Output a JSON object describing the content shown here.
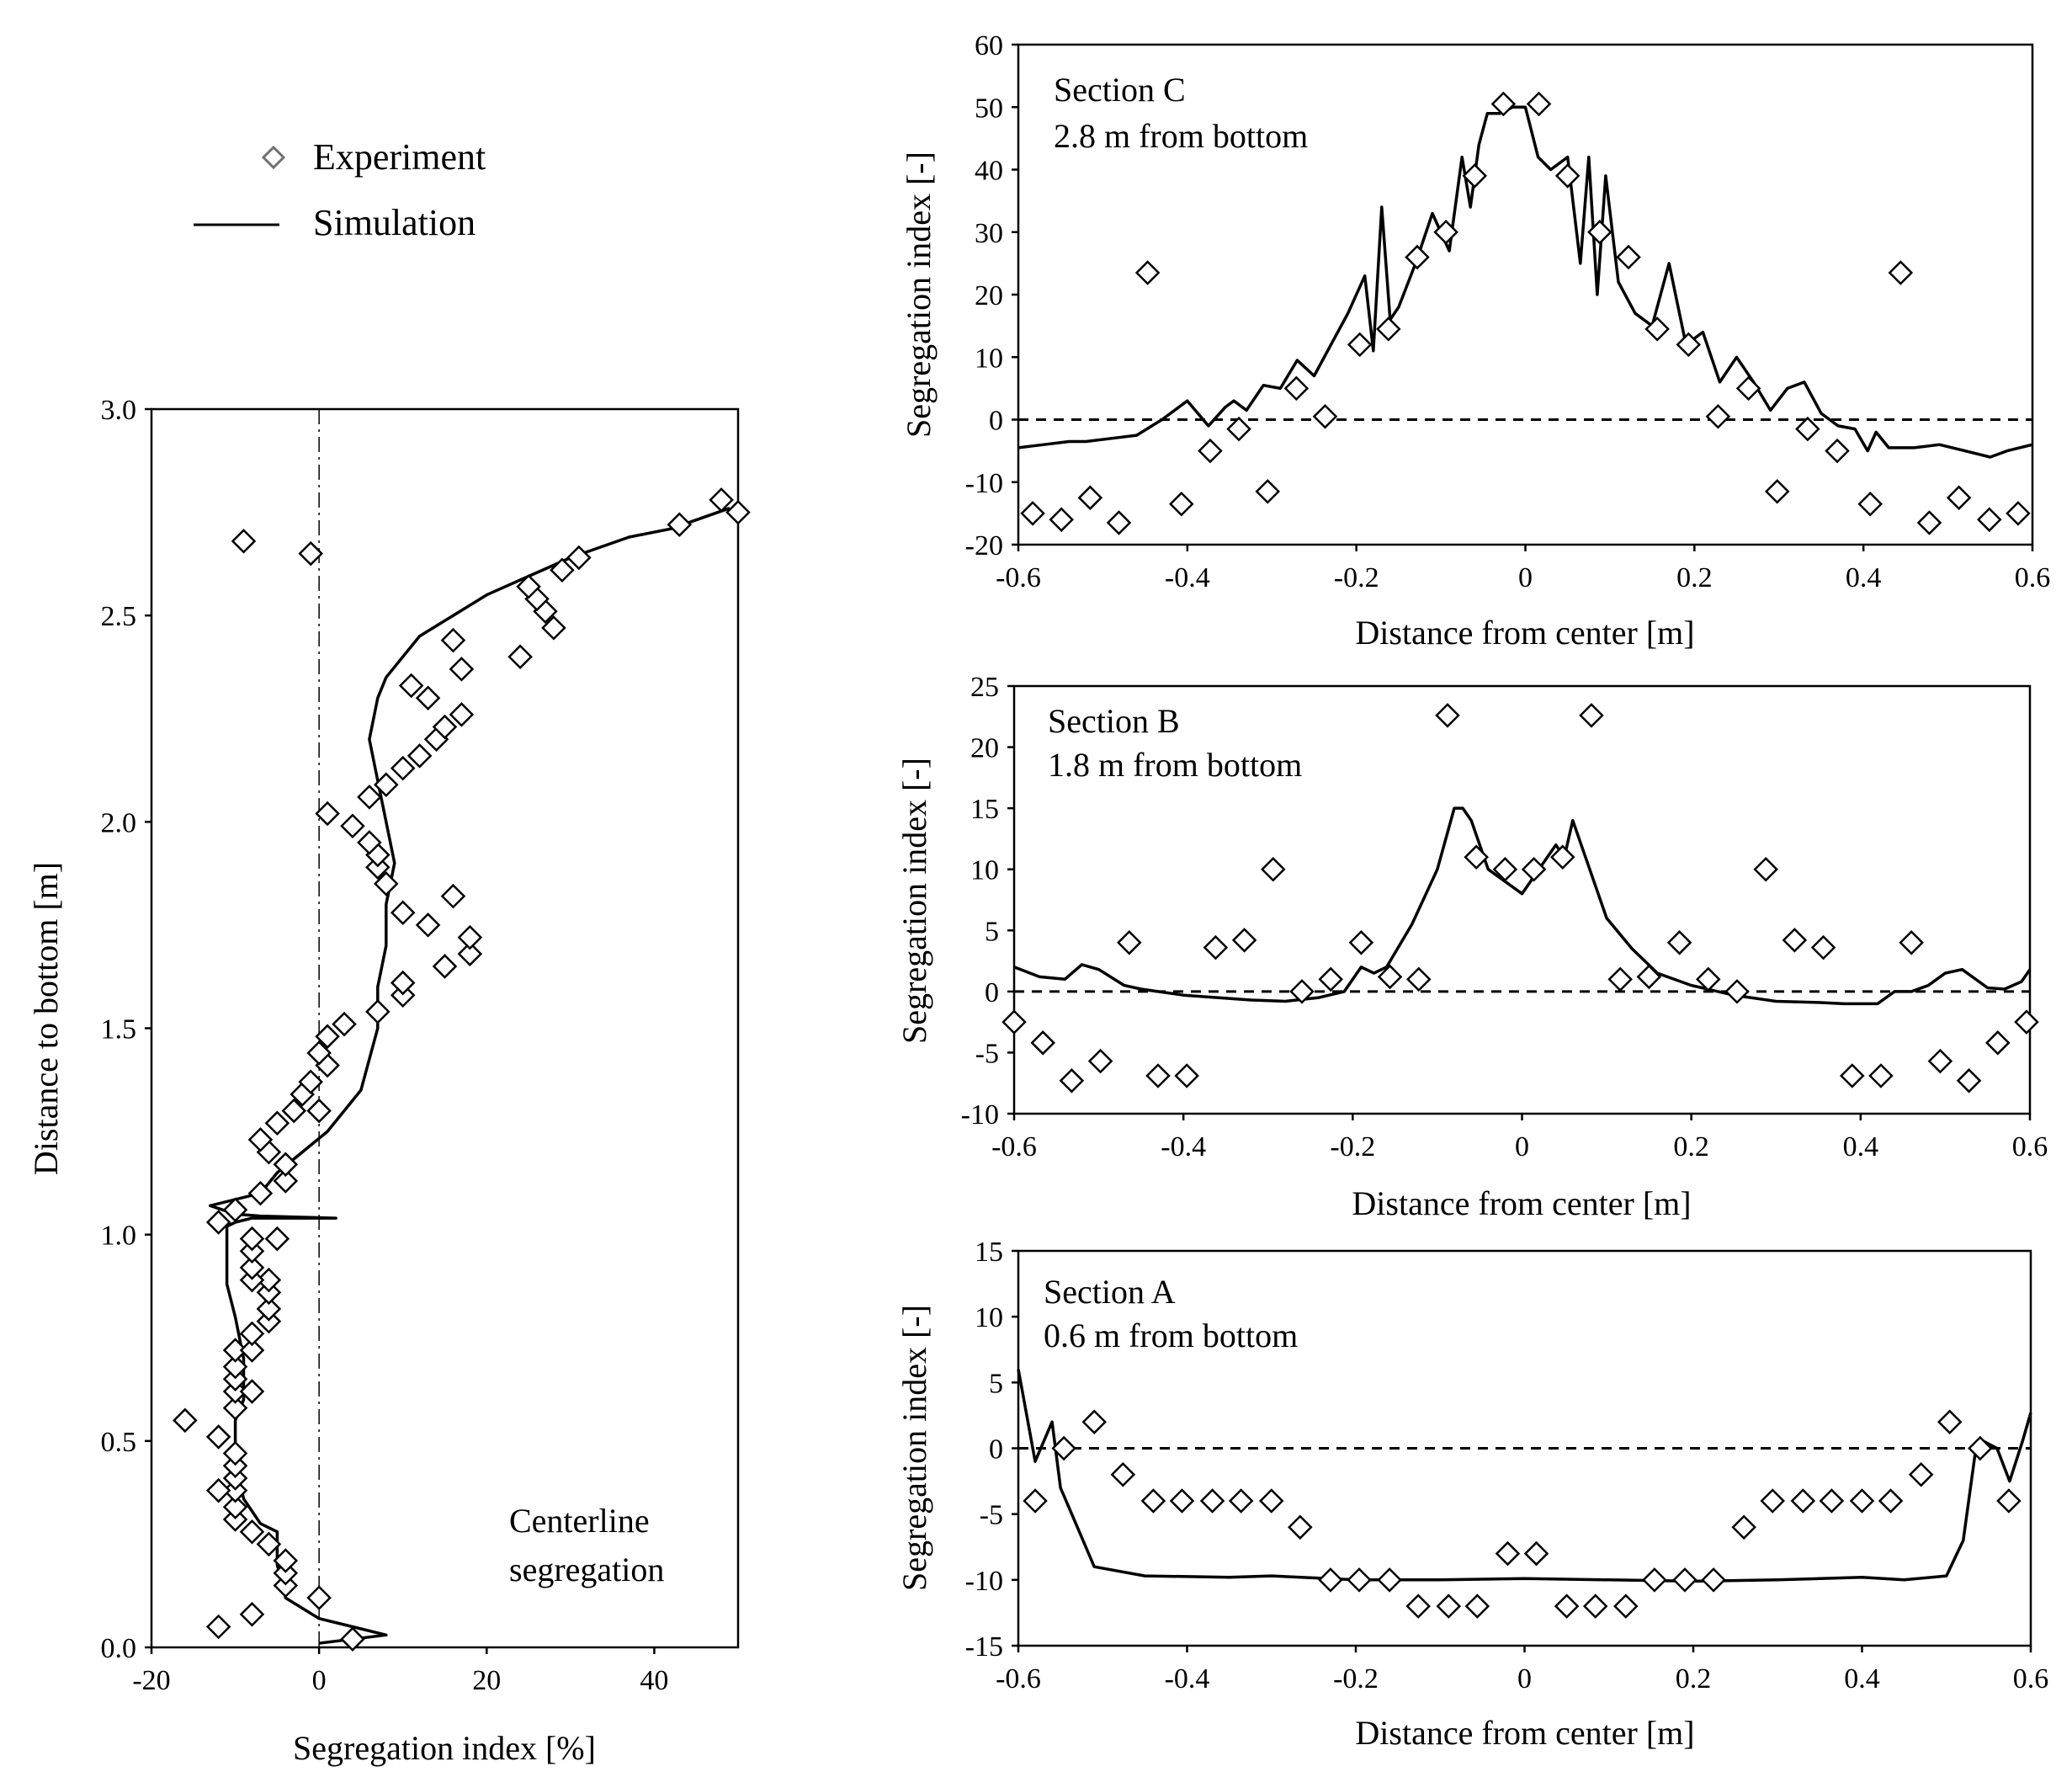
{
  "legend": {
    "experiment_label": "Experiment",
    "simulation_label": "Simulation"
  },
  "chart_data": [
    {
      "id": "centerline",
      "type": "scatter",
      "xlabel": "Segregation index [%]",
      "ylabel": "Distance to bottom [m]",
      "annotation": [
        "Centerline",
        "segregation"
      ],
      "xlim": [
        -20,
        50
      ],
      "ylim": [
        0,
        3
      ],
      "xticks": [
        -20,
        0,
        20,
        40
      ],
      "yticks": [
        0.0,
        0.5,
        1.0,
        1.5,
        2.0,
        2.5,
        3.0
      ],
      "ytick_labels": [
        "0.0",
        "0.5",
        "1.0",
        "1.5",
        "2.0",
        "2.5",
        "3.0"
      ],
      "reference_line": {
        "axis": "x",
        "value": 0,
        "style": "dash-dot"
      },
      "series": [
        {
          "name": "Experiment",
          "kind": "scatter",
          "x": [
            4,
            -12,
            -8,
            0,
            -4,
            -4,
            -4,
            -6,
            -8,
            -10,
            -10,
            -10,
            -12,
            -10,
            -10,
            -10,
            -12,
            -16,
            -10,
            -10,
            -10,
            -10,
            -8,
            -10,
            -8,
            -8,
            -6,
            -6,
            -6,
            -6,
            -8,
            -8,
            -8,
            -8,
            -5,
            -12,
            -10,
            -7,
            -4,
            -4,
            -6,
            -7,
            -5,
            -3,
            0,
            -2,
            -1,
            1,
            0,
            1,
            3,
            7,
            10,
            10,
            15,
            18,
            18,
            13,
            10,
            16,
            8,
            7,
            7,
            6,
            4,
            1,
            6,
            8,
            10,
            12,
            14,
            15,
            17,
            13,
            11,
            17,
            24,
            16,
            28,
            27,
            26,
            25,
            29,
            31,
            43,
            48,
            50,
            -1,
            -9
          ],
          "y": [
            0.02,
            0.05,
            0.08,
            0.12,
            0.15,
            0.18,
            0.21,
            0.25,
            0.28,
            0.31,
            0.34,
            0.38,
            0.38,
            0.41,
            0.44,
            0.47,
            0.51,
            0.55,
            0.58,
            0.62,
            0.65,
            0.68,
            0.62,
            0.72,
            0.72,
            0.76,
            0.79,
            0.82,
            0.86,
            0.89,
            0.89,
            0.92,
            0.96,
            0.99,
            0.99,
            1.03,
            1.06,
            1.1,
            1.13,
            1.17,
            1.2,
            1.23,
            1.27,
            1.3,
            1.3,
            1.34,
            1.37,
            1.41,
            1.44,
            1.48,
            1.51,
            1.54,
            1.58,
            1.61,
            1.65,
            1.68,
            1.72,
            1.75,
            1.78,
            1.82,
            1.85,
            1.89,
            1.92,
            1.95,
            1.99,
            2.02,
            2.06,
            2.09,
            2.13,
            2.16,
            2.2,
            2.23,
            2.26,
            2.3,
            2.33,
            2.37,
            2.4,
            2.44,
            2.47,
            2.51,
            2.54,
            2.57,
            2.61,
            2.64,
            2.72,
            2.78,
            2.75,
            2.65,
            2.68
          ]
        },
        {
          "name": "Simulation",
          "kind": "line",
          "x": [
            0,
            4,
            8,
            4,
            0,
            -4,
            -5,
            -5,
            -7,
            -9,
            -10,
            -10,
            -9,
            -9,
            -10,
            -11,
            -11,
            -11,
            -11,
            -10,
            -8,
            2,
            -7,
            -10,
            -13,
            -7,
            -5,
            1,
            5,
            7,
            7,
            8,
            8,
            9,
            8,
            7,
            6,
            7,
            8,
            10,
            12,
            16,
            20,
            30,
            37,
            42,
            49
          ],
          "y": [
            0.01,
            0.02,
            0.03,
            0.05,
            0.07,
            0.12,
            0.2,
            0.28,
            0.3,
            0.36,
            0.45,
            0.55,
            0.6,
            0.7,
            0.8,
            0.88,
            0.95,
            1.0,
            1.02,
            1.03,
            1.04,
            1.04,
            1.045,
            1.05,
            1.07,
            1.1,
            1.15,
            1.25,
            1.35,
            1.5,
            1.6,
            1.7,
            1.8,
            1.9,
            2.0,
            2.1,
            2.2,
            2.3,
            2.35,
            2.4,
            2.45,
            2.5,
            2.55,
            2.64,
            2.69,
            2.71,
            2.76
          ]
        }
      ]
    },
    {
      "id": "section-c",
      "type": "scatter",
      "title": "Section C",
      "subtitle": "2.8 m from bottom",
      "xlabel": "Distance from center [m]",
      "ylabel": "Segregation index [-]",
      "xlim": [
        -0.6,
        0.6
      ],
      "ylim": [
        -20,
        60
      ],
      "xticks": [
        -0.6,
        -0.4,
        -0.2,
        0,
        0.2,
        0.4,
        0.6
      ],
      "xtick_labels": [
        "-0.6",
        "-0.4",
        "-0.2",
        "0",
        "0.2",
        "0.4",
        "0.6"
      ],
      "yticks": [
        -20,
        -10,
        0,
        10,
        20,
        30,
        40,
        50,
        60
      ],
      "reference_line": {
        "axis": "y",
        "value": 0,
        "style": "dashed"
      },
      "series": [
        {
          "name": "Experiment",
          "kind": "scatter",
          "x": [
            -0.583,
            -0.549,
            -0.515,
            -0.481,
            -0.447,
            -0.407,
            -0.373,
            -0.339,
            -0.305,
            -0.271,
            -0.237,
            -0.196,
            -0.162,
            -0.128,
            -0.094,
            -0.06,
            -0.026,
            0.016,
            0.05,
            0.088,
            0.122,
            0.156,
            0.193,
            0.228,
            0.264,
            0.298,
            0.334,
            0.369,
            0.408,
            0.444,
            0.478,
            0.513,
            0.549,
            0.583
          ],
          "y": [
            -15,
            -16,
            -12.5,
            -16.5,
            23.5,
            -13.5,
            -5,
            -1.5,
            -11.5,
            5,
            0.5,
            12,
            14.5,
            26,
            30,
            39,
            50.5,
            50.5,
            39,
            30,
            26,
            14.5,
            12,
            0.5,
            5,
            -11.5,
            -1.5,
            -5,
            -13.5,
            23.5,
            -16.5,
            -12.5,
            -16,
            -15
          ]
        },
        {
          "name": "Simulation",
          "kind": "line",
          "x": [
            -0.6,
            -0.57,
            -0.54,
            -0.52,
            -0.49,
            -0.46,
            -0.43,
            -0.4,
            -0.375,
            -0.355,
            -0.345,
            -0.33,
            -0.31,
            -0.29,
            -0.27,
            -0.25,
            -0.23,
            -0.21,
            -0.19,
            -0.18,
            -0.17,
            -0.16,
            -0.15,
            -0.13,
            -0.11,
            -0.09,
            -0.075,
            -0.065,
            -0.055,
            -0.045,
            -0.03,
            -0.015,
            0,
            0.015,
            0.03,
            0.05,
            0.065,
            0.075,
            0.085,
            0.095,
            0.11,
            0.13,
            0.15,
            0.17,
            0.19,
            0.21,
            0.23,
            0.25,
            0.27,
            0.29,
            0.31,
            0.33,
            0.35,
            0.37,
            0.39,
            0.405,
            0.415,
            0.43,
            0.46,
            0.49,
            0.52,
            0.55,
            0.57,
            0.6
          ],
          "y": [
            -4.5,
            -4,
            -3.5,
            -3.5,
            -3,
            -2.5,
            0,
            3,
            -1,
            2,
            3,
            1.5,
            5.5,
            5,
            9.5,
            7,
            12,
            17,
            23,
            11,
            34,
            16,
            18,
            25,
            33,
            27,
            42,
            34,
            44,
            49,
            49,
            50,
            50,
            42,
            40,
            42,
            25,
            42,
            20,
            39,
            22,
            17,
            15,
            25,
            12,
            14,
            6,
            10,
            6,
            1.5,
            5,
            6,
            1,
            -1,
            -1.5,
            -5,
            -2,
            -4.5,
            -4.5,
            -4,
            -5,
            -6,
            -5,
            -4
          ]
        }
      ]
    },
    {
      "id": "section-b",
      "type": "scatter",
      "title": "Section B",
      "subtitle": "1.8 m from bottom",
      "xlabel": "Distance from center [m]",
      "ylabel": "Segregation index [-]",
      "xlim": [
        -0.6,
        0.6
      ],
      "ylim": [
        -10,
        25
      ],
      "xticks": [
        -0.6,
        -0.4,
        -0.2,
        0,
        0.2,
        0.4,
        0.6
      ],
      "xtick_labels": [
        "-0.6",
        "-0.4",
        "-0.2",
        "0",
        "0.2",
        "0.4",
        "0.6"
      ],
      "yticks": [
        -10,
        -5,
        0,
        5,
        10,
        15,
        20,
        25
      ],
      "reference_line": {
        "axis": "y",
        "value": 0,
        "style": "dashed"
      },
      "series": [
        {
          "name": "Experiment",
          "kind": "scatter",
          "x": [
            -0.6,
            -0.566,
            -0.532,
            -0.498,
            -0.464,
            -0.43,
            -0.396,
            -0.362,
            -0.328,
            -0.294,
            -0.26,
            -0.226,
            -0.19,
            -0.156,
            -0.122,
            -0.088,
            -0.054,
            -0.02,
            0.014,
            0.048,
            0.082,
            0.116,
            0.15,
            0.186,
            0.22,
            0.254,
            0.288,
            0.322,
            0.356,
            0.39,
            0.424,
            0.46,
            0.494,
            0.528,
            0.562,
            0.596
          ],
          "y": [
            -2.5,
            -4.2,
            -7.3,
            -5.7,
            4,
            -6.9,
            -6.9,
            3.6,
            4.2,
            10,
            0,
            1,
            4,
            1.2,
            1,
            22.6,
            11,
            10,
            10,
            11,
            22.6,
            1,
            1.2,
            4,
            1,
            0,
            10,
            4.2,
            3.6,
            -6.9,
            -6.9,
            4,
            -5.7,
            -7.3,
            -4.2,
            -2.5
          ]
        },
        {
          "name": "Simulation",
          "kind": "line",
          "x": [
            -0.6,
            -0.57,
            -0.54,
            -0.52,
            -0.5,
            -0.47,
            -0.45,
            -0.43,
            -0.4,
            -0.36,
            -0.32,
            -0.28,
            -0.24,
            -0.21,
            -0.19,
            -0.175,
            -0.16,
            -0.13,
            -0.1,
            -0.08,
            -0.07,
            -0.06,
            -0.04,
            -0.02,
            0,
            0.02,
            0.04,
            0.05,
            0.06,
            0.075,
            0.1,
            0.13,
            0.16,
            0.2,
            0.25,
            0.3,
            0.35,
            0.38,
            0.42,
            0.44,
            0.46,
            0.48,
            0.5,
            0.52,
            0.55,
            0.57,
            0.59,
            0.6
          ],
          "y": [
            2,
            1.2,
            1,
            2.2,
            1.8,
            0.5,
            0.2,
            0,
            -0.3,
            -0.5,
            -0.7,
            -0.8,
            -0.5,
            0,
            2,
            1.5,
            2,
            5.5,
            10,
            15,
            15,
            14,
            10,
            9,
            8,
            10,
            12,
            11,
            14,
            11,
            6,
            3.5,
            1.5,
            0.5,
            -0.3,
            -0.8,
            -0.9,
            -1,
            -1,
            0,
            0,
            0.5,
            1.5,
            1.8,
            0.3,
            0.2,
            0.8,
            1.8
          ]
        }
      ]
    },
    {
      "id": "section-a",
      "type": "scatter",
      "title": "Section A",
      "subtitle": "0.6 m from bottom",
      "xlabel": "Distance from center [m]",
      "ylabel": "Segregation index [-]",
      "xlim": [
        -0.6,
        0.6
      ],
      "ylim": [
        -15,
        15
      ],
      "xticks": [
        -0.6,
        -0.4,
        -0.2,
        0,
        0.2,
        0.4,
        0.6
      ],
      "xtick_labels": [
        "-0.6",
        "-0.4",
        "-0.2",
        "0",
        "0.2",
        "0.4",
        "0.6"
      ],
      "yticks": [
        -15,
        -10,
        -5,
        0,
        5,
        10,
        15
      ],
      "reference_line": {
        "axis": "y",
        "value": 0,
        "style": "dashed"
      },
      "series": [
        {
          "name": "Experiment",
          "kind": "scatter",
          "x": [
            -0.58,
            -0.546,
            -0.51,
            -0.476,
            -0.44,
            -0.406,
            -0.37,
            -0.336,
            -0.3,
            -0.266,
            -0.23,
            -0.196,
            -0.16,
            -0.126,
            -0.09,
            -0.056,
            -0.02,
            0.014,
            0.05,
            0.084,
            0.12,
            0.154,
            0.19,
            0.224,
            0.26,
            0.294,
            0.33,
            0.364,
            0.4,
            0.434,
            0.47,
            0.504,
            0.54,
            0.574
          ],
          "y": [
            -4,
            0,
            2,
            -2,
            -4,
            -4,
            -4,
            -4,
            -4,
            -6,
            -10,
            -10,
            -10,
            -12,
            -12,
            -12,
            -8,
            -8,
            -12,
            -12,
            -12,
            -10,
            -10,
            -10,
            -6,
            -4,
            -4,
            -4,
            -4,
            -4,
            -2,
            2,
            0,
            -4
          ]
        },
        {
          "name": "Simulation",
          "kind": "line",
          "x": [
            -0.6,
            -0.58,
            -0.56,
            -0.55,
            -0.53,
            -0.51,
            -0.45,
            -0.35,
            -0.3,
            -0.2,
            -0.1,
            0,
            0.1,
            0.2,
            0.3,
            0.4,
            0.45,
            0.5,
            0.52,
            0.535,
            0.545,
            0.56,
            0.575,
            0.59,
            0.6
          ],
          "y": [
            6,
            -1,
            2,
            -3,
            -6,
            -9,
            -9.7,
            -9.8,
            -9.7,
            -10,
            -10,
            -9.9,
            -10,
            -10.1,
            -10,
            -9.8,
            -10,
            -9.7,
            -7,
            0,
            0.5,
            0,
            -2.5,
            0.5,
            2.7
          ]
        }
      ]
    }
  ]
}
